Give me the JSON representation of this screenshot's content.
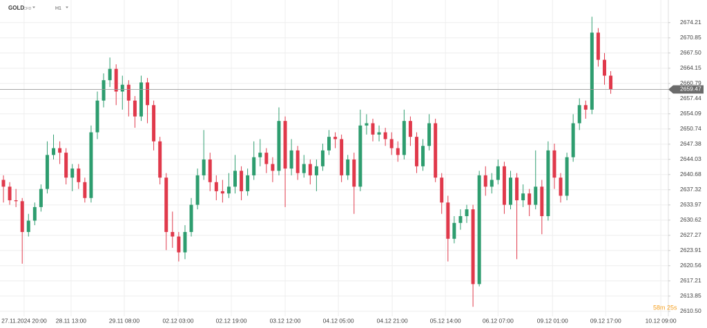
{
  "header": {
    "symbol": "GOLD",
    "kind": "CFD",
    "interval": "H1"
  },
  "countdown": "58m 25s",
  "chart_data": {
    "type": "candlestick",
    "up_color": "#2e9d6f",
    "down_color": "#e0394b",
    "grid": true,
    "last_price": 2659.47,
    "ylim": [
      2609.4,
      2679.2
    ],
    "yticks": [
      2674.21,
      2670.85,
      {
        "value": 2667.5,
        "label": "2667.50"
      },
      2664.15,
      2660.79,
      2657.44,
      2654.09,
      2650.74,
      2647.38,
      2644.03,
      2640.68,
      2637.32,
      2633.97,
      2630.62,
      2627.27,
      2623.91,
      2620.56,
      2617.21,
      2613.85,
      {
        "value": 2610.5,
        "label": "2610.50"
      }
    ],
    "xlim": [
      -0.55,
      106.2
    ],
    "xticks": [
      {
        "value": 3.3,
        "label": "27.11.2024 20:00"
      },
      {
        "value": 10.8,
        "label": "28.11 13:00"
      },
      {
        "value": 19.3,
        "label": "29.11 08:00"
      },
      {
        "value": 27.9,
        "label": "02.12 03:00"
      },
      {
        "value": 36.4,
        "label": "02.12 19:00"
      },
      {
        "value": 45.0,
        "label": "03.12 12:00"
      },
      {
        "value": 53.5,
        "label": "04.12 05:00"
      },
      {
        "value": 62.1,
        "label": "04.12 21:00"
      },
      {
        "value": 70.6,
        "label": "05.12 14:00"
      },
      {
        "value": 79.0,
        "label": "06.12 07:00"
      },
      {
        "value": 87.7,
        "label": "09.12 01:00"
      },
      {
        "value": 96.2,
        "label": "09.12 17:00"
      },
      {
        "value": 105.0,
        "label": "10.12 09:00"
      }
    ],
    "open": [
      2639.5,
      2638.0,
      2635.0,
      2634.8,
      2628.0,
      2630.5,
      2633.5,
      2637.5,
      2645.0,
      2646.5,
      2645.5,
      2640.0,
      2642.0,
      2639.0,
      2635.5,
      2650.0,
      2657.0,
      2661.5,
      2664.0,
      2659.0,
      2660.5,
      2657.0,
      2653.5,
      2661.0,
      2656.0,
      2648.0,
      2640.0,
      2628.0,
      2627.0,
      2623.5,
      2628.0,
      2634.0,
      2640.5,
      2644.0,
      2639.0,
      2637.0,
      2636.5,
      2638.0,
      2641.5,
      2637.0,
      2640.5,
      2644.5,
      2645.5,
      2643.0,
      2641.5,
      2652.5,
      2642.0,
      2646.0,
      2641.0,
      2643.0,
      2640.5,
      2642.5,
      2646.0,
      2649.0,
      2648.5,
      2640.5,
      2644.0,
      2638.0,
      2651.5,
      2652.0,
      2649.5,
      2650.0,
      2648.5,
      2646.5,
      2645.0,
      2652.5,
      2649.0,
      2642.5,
      2647.0,
      2652.0,
      2640.0,
      2634.5,
      2626.5,
      2630.0,
      2631.5,
      2633.0,
      2616.5,
      2640.5,
      2638.0,
      2639.5,
      2642.5,
      2634.0,
      2640.0,
      2635.0,
      2636.5,
      2634.0,
      2638.0,
      2631.5,
      2646.0,
      2640.0,
      2636.0,
      2644.5,
      2652.0,
      2656.0,
      2655.0,
      2672.0,
      2666.0,
      2662.5
    ],
    "high": [
      2640.5,
      2639.0,
      2637.5,
      2635.5,
      2632.0,
      2634.5,
      2638.5,
      2648.0,
      2649.5,
      2648.0,
      2646.5,
      2643.0,
      2643.0,
      2640.0,
      2651.5,
      2659.0,
      2663.0,
      2666.5,
      2665.0,
      2662.5,
      2661.5,
      2658.0,
      2662.5,
      2662.0,
      2657.0,
      2649.0,
      2641.0,
      2632.5,
      2628.0,
      2629.5,
      2635.5,
      2642.0,
      2650.5,
      2645.5,
      2640.5,
      2639.5,
      2641.0,
      2645.0,
      2642.5,
      2642.0,
      2648.0,
      2648.5,
      2646.5,
      2644.5,
      2655.5,
      2653.5,
      2648.5,
      2647.0,
      2645.0,
      2644.0,
      2644.0,
      2647.5,
      2650.5,
      2650.0,
      2649.5,
      2645.0,
      2645.5,
      2655.0,
      2654.0,
      2653.0,
      2651.5,
      2651.0,
      2650.0,
      2648.0,
      2655.0,
      2653.5,
      2650.0,
      2648.5,
      2654.0,
      2653.0,
      2641.0,
      2636.0,
      2631.5,
      2633.0,
      2634.0,
      2634.0,
      2641.5,
      2642.5,
      2641.0,
      2644.0,
      2643.5,
      2641.5,
      2641.0,
      2638.5,
      2637.5,
      2646.0,
      2639.5,
      2648.0,
      2647.5,
      2641.0,
      2645.5,
      2654.0,
      2657.5,
      2657.0,
      2675.5,
      2673.0,
      2667.5,
      2663.5
    ],
    "low": [
      2634.5,
      2634.0,
      2633.5,
      2621.0,
      2627.0,
      2629.5,
      2632.5,
      2636.5,
      2644.0,
      2643.0,
      2638.5,
      2637.0,
      2637.5,
      2634.5,
      2634.5,
      2648.5,
      2655.5,
      2660.0,
      2656.0,
      2655.0,
      2653.5,
      2651.0,
      2652.5,
      2652.0,
      2646.0,
      2638.5,
      2624.0,
      2624.5,
      2621.5,
      2622.0,
      2627.0,
      2633.0,
      2639.5,
      2637.0,
      2635.0,
      2634.5,
      2635.5,
      2636.5,
      2635.0,
      2636.0,
      2639.5,
      2642.5,
      2641.0,
      2639.0,
      2640.5,
      2633.5,
      2640.5,
      2639.5,
      2640.0,
      2638.5,
      2637.0,
      2641.5,
      2645.0,
      2646.5,
      2639.0,
      2639.5,
      2632.0,
      2637.0,
      2649.5,
      2648.0,
      2648.0,
      2647.0,
      2645.0,
      2643.5,
      2644.0,
      2647.0,
      2641.0,
      2641.5,
      2646.0,
      2639.0,
      2632.0,
      2621.5,
      2625.5,
      2628.5,
      2630.0,
      2611.5,
      2616.0,
      2636.0,
      2636.5,
      2638.5,
      2632.0,
      2633.0,
      2622.0,
      2633.5,
      2631.5,
      2633.0,
      2627.5,
      2630.5,
      2637.5,
      2634.5,
      2635.0,
      2643.5,
      2650.5,
      2653.0,
      2654.0,
      2664.5,
      2660.5,
      2658.5
    ],
    "close": [
      2638.0,
      2635.0,
      2634.8,
      2628.0,
      2630.5,
      2633.5,
      2637.5,
      2645.0,
      2646.5,
      2645.5,
      2640.0,
      2642.0,
      2639.0,
      2635.5,
      2650.0,
      2657.0,
      2661.5,
      2664.0,
      2659.0,
      2660.5,
      2657.0,
      2653.5,
      2661.0,
      2656.0,
      2648.0,
      2640.0,
      2628.0,
      2627.0,
      2623.5,
      2628.0,
      2634.0,
      2640.5,
      2644.0,
      2639.0,
      2637.0,
      2636.5,
      2638.0,
      2641.5,
      2637.0,
      2640.5,
      2644.5,
      2645.5,
      2643.0,
      2641.5,
      2652.5,
      2642.0,
      2646.0,
      2641.0,
      2643.0,
      2640.5,
      2642.5,
      2646.0,
      2649.0,
      2648.5,
      2640.5,
      2644.0,
      2638.0,
      2651.5,
      2652.0,
      2649.5,
      2650.0,
      2648.5,
      2646.5,
      2645.0,
      2652.5,
      2649.0,
      2642.5,
      2647.0,
      2652.0,
      2640.0,
      2634.5,
      2626.5,
      2630.0,
      2631.5,
      2633.0,
      2616.5,
      2640.5,
      2638.0,
      2639.5,
      2642.5,
      2634.0,
      2640.0,
      2635.0,
      2636.5,
      2634.0,
      2638.0,
      2631.5,
      2646.0,
      2640.0,
      2636.0,
      2644.5,
      2652.0,
      2656.0,
      2655.0,
      2672.0,
      2666.0,
      2662.5,
      2659.47
    ]
  }
}
